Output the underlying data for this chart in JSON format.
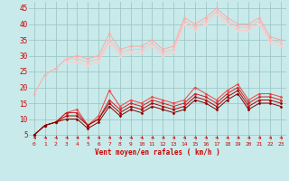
{
  "xlabel": "Vent moyen/en rafales ( km/h )",
  "background_color": "#c8eaea",
  "grid_color": "#a0c8c8",
  "x": [
    0,
    1,
    2,
    3,
    4,
    5,
    6,
    7,
    8,
    9,
    10,
    11,
    12,
    13,
    14,
    15,
    16,
    17,
    18,
    19,
    20,
    21,
    22,
    23
  ],
  "series": [
    {
      "color": "#ffaaaa",
      "marker": "D",
      "markersize": 1.5,
      "linewidth": 0.7,
      "data": [
        18,
        24,
        26,
        29,
        30,
        29,
        30,
        37,
        32,
        33,
        33,
        35,
        32,
        33,
        42,
        40,
        42,
        45,
        42,
        40,
        40,
        42,
        36,
        35
      ]
    },
    {
      "color": "#ffbbbb",
      "marker": "D",
      "markersize": 1.5,
      "linewidth": 0.7,
      "data": [
        null,
        null,
        null,
        29,
        29,
        28,
        29,
        35,
        31,
        32,
        32,
        34,
        31,
        32,
        41,
        39,
        41,
        44,
        41,
        39,
        39,
        41,
        35,
        34
      ]
    },
    {
      "color": "#ffcccc",
      "marker": "D",
      "markersize": 1.5,
      "linewidth": 0.7,
      "data": [
        null,
        null,
        null,
        28,
        28,
        27,
        28,
        34,
        30,
        31,
        31,
        33,
        30,
        31,
        40,
        38,
        40,
        43,
        40,
        38,
        38,
        40,
        34,
        33
      ]
    },
    {
      "color": "#ee4444",
      "marker": "D",
      "markersize": 1.5,
      "linewidth": 0.7,
      "data": [
        5,
        8,
        9,
        12,
        13,
        8,
        11,
        19,
        14,
        16,
        15,
        17,
        16,
        15,
        16,
        20,
        18,
        16,
        19,
        21,
        16,
        18,
        18,
        17
      ]
    },
    {
      "color": "#cc2222",
      "marker": "D",
      "markersize": 1.5,
      "linewidth": 0.7,
      "data": [
        5,
        8,
        9,
        12,
        12,
        8,
        10,
        16,
        13,
        15,
        14,
        16,
        15,
        14,
        15,
        18,
        17,
        15,
        18,
        20,
        15,
        17,
        17,
        16
      ]
    },
    {
      "color": "#aa0000",
      "marker": "D",
      "markersize": 1.5,
      "linewidth": 0.7,
      "data": [
        5,
        8,
        9,
        11,
        11,
        8,
        10,
        15,
        12,
        14,
        13,
        15,
        14,
        13,
        14,
        17,
        16,
        14,
        17,
        19,
        14,
        16,
        16,
        15
      ]
    },
    {
      "color": "#880000",
      "marker": "D",
      "markersize": 1.5,
      "linewidth": 0.7,
      "data": [
        5,
        8,
        9,
        10,
        10,
        7,
        9,
        14,
        11,
        13,
        12,
        14,
        13,
        12,
        13,
        16,
        15,
        13,
        16,
        18,
        13,
        15,
        15,
        14
      ]
    }
  ],
  "ylim": [
    3,
    47
  ],
  "yticks": [
    5,
    10,
    15,
    20,
    25,
    30,
    35,
    40,
    45
  ],
  "xticks": [
    0,
    1,
    2,
    3,
    4,
    5,
    6,
    7,
    8,
    9,
    10,
    11,
    12,
    13,
    14,
    15,
    16,
    17,
    18,
    19,
    20,
    21,
    22,
    23
  ]
}
